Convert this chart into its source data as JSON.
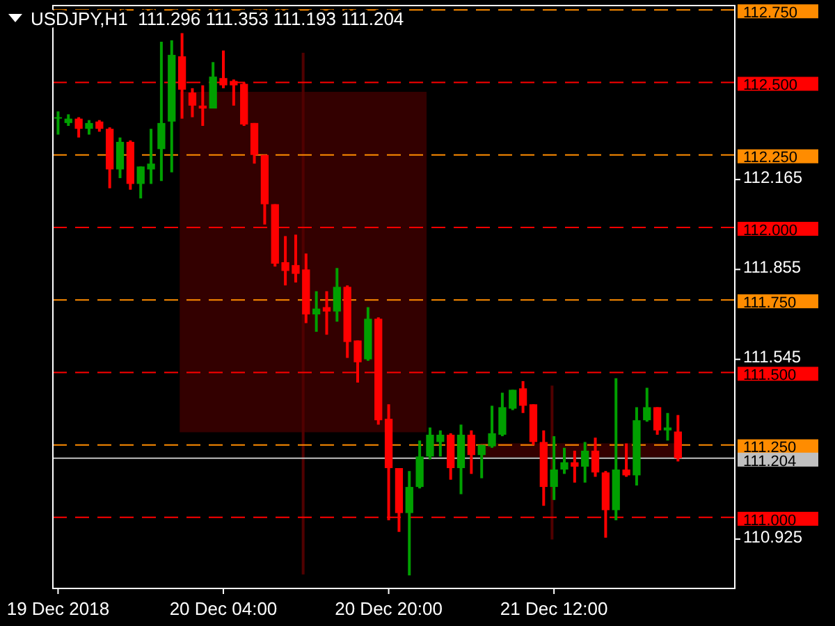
{
  "chart_data": {
    "type": "candlestick",
    "title": "USDJPY,H1  111.296 111.353 111.193 111.204",
    "categories": [
      "19 Dec 2018",
      null,
      null,
      null,
      null,
      null,
      null,
      null,
      null,
      null,
      null,
      null,
      null,
      null,
      null,
      null,
      "20 Dec 04:00",
      null,
      null,
      null,
      null,
      null,
      null,
      null,
      null,
      null,
      null,
      null,
      null,
      null,
      null,
      null,
      "20 Dec 20:00",
      null,
      null,
      null,
      null,
      null,
      null,
      null,
      null,
      null,
      null,
      null,
      null,
      null,
      null,
      null,
      "21 Dec 12:00",
      null,
      null,
      null,
      null,
      null,
      null,
      null,
      null,
      null,
      null,
      null,
      null,
      null,
      null,
      null,
      null,
      null
    ],
    "ylim": [
      110.755,
      112.765
    ],
    "yticks": [
      112.165,
      111.855,
      111.545,
      110.925
    ],
    "series": [
      {
        "color": "#00a000",
        "ohlc": [
          [
            112.38,
            112.4,
            112.32,
            112.38
          ],
          [
            112.36,
            112.39,
            112.35,
            112.375
          ],
          null,
          [
            112.34,
            112.37,
            112.32,
            112.36
          ],
          null,
          null,
          [
            112.2,
            112.31,
            112.17,
            112.295
          ],
          null,
          [
            112.15,
            112.21,
            112.1,
            112.21
          ],
          [
            112.2,
            112.34,
            112.15,
            112.22
          ],
          [
            112.27,
            112.64,
            112.16,
            112.36
          ],
          [
            112.365,
            112.645,
            112.19,
            112.595
          ],
          null,
          null,
          null,
          [
            112.41,
            112.57,
            112.41,
            112.52
          ],
          null,
          null,
          null,
          null,
          null,
          null,
          null,
          null,
          null,
          [
            111.7,
            111.78,
            111.64,
            111.72
          ],
          null,
          [
            111.71,
            111.86,
            111.675,
            111.795
          ],
          null,
          null,
          [
            111.545,
            111.725,
            111.54,
            111.685
          ],
          null,
          null,
          null,
          [
            111.015,
            111.16,
            110.8,
            111.105
          ],
          [
            111.105,
            111.265,
            111.1,
            111.21
          ],
          [
            111.21,
            111.31,
            111.2,
            111.285
          ],
          [
            111.26,
            111.3,
            111.21,
            111.285
          ],
          null,
          [
            111.17,
            111.32,
            111.08,
            111.285
          ],
          null,
          [
            111.215,
            111.25,
            111.135,
            111.25
          ],
          [
            111.245,
            111.385,
            111.24,
            111.29
          ],
          [
            111.285,
            111.43,
            111.28,
            111.38
          ],
          [
            111.375,
            111.44,
            111.37,
            111.44
          ],
          null,
          null,
          null,
          [
            111.105,
            111.28,
            111.06,
            111.165
          ],
          [
            111.165,
            111.24,
            111.15,
            111.19
          ],
          null,
          [
            111.175,
            111.26,
            111.12,
            111.23
          ],
          null,
          null,
          [
            111.025,
            111.48,
            110.99,
            111.165
          ],
          null,
          [
            111.145,
            111.38,
            111.11,
            111.335
          ],
          [
            111.335,
            111.447,
            111.33,
            111.38
          ],
          null,
          [
            111.3,
            111.36,
            111.265,
            111.31
          ],
          null,
          null,
          null,
          null,
          null,
          null
        ]
      },
      {
        "color": "#ff0000",
        "ohlc": [
          null,
          null,
          [
            112.375,
            112.38,
            112.31,
            112.34
          ],
          null,
          [
            112.365,
            112.37,
            112.33,
            112.34
          ],
          [
            112.34,
            112.345,
            112.135,
            112.2
          ],
          null,
          [
            112.295,
            112.3,
            112.13,
            112.15
          ],
          null,
          null,
          null,
          null,
          [
            112.59,
            112.67,
            112.375,
            112.475
          ],
          [
            112.465,
            112.48,
            112.38,
            112.42
          ],
          [
            112.42,
            112.49,
            112.35,
            112.41
          ],
          null,
          [
            112.515,
            112.61,
            112.48,
            112.49
          ],
          [
            112.505,
            112.51,
            112.42,
            112.49
          ],
          [
            112.495,
            112.5,
            112.35,
            112.355
          ],
          [
            112.36,
            112.36,
            112.22,
            112.25
          ],
          [
            112.25,
            112.25,
            112.01,
            112.08
          ],
          [
            112.08,
            112.08,
            111.865,
            111.875
          ],
          [
            111.88,
            111.97,
            111.8,
            111.85
          ],
          [
            111.87,
            111.975,
            111.81,
            111.84
          ],
          [
            111.855,
            111.91,
            111.67,
            111.7
          ],
          null,
          [
            111.725,
            111.78,
            111.63,
            111.71
          ],
          null,
          [
            111.795,
            111.8,
            111.55,
            111.605
          ],
          [
            111.61,
            111.61,
            111.465,
            111.535
          ],
          null,
          [
            111.685,
            111.69,
            111.32,
            111.335
          ],
          [
            111.34,
            111.39,
            110.99,
            111.17
          ],
          [
            111.17,
            111.17,
            110.95,
            111.015
          ],
          null,
          null,
          null,
          null,
          [
            111.285,
            111.29,
            111.13,
            111.17
          ],
          null,
          [
            111.285,
            111.3,
            111.15,
            111.215
          ],
          null,
          null,
          null,
          null,
          [
            111.445,
            111.47,
            111.36,
            111.385
          ],
          [
            111.39,
            111.39,
            111.25,
            111.26
          ],
          [
            111.26,
            111.3,
            111.04,
            111.105
          ],
          null,
          null,
          [
            111.19,
            111.23,
            111.12,
            111.175
          ],
          null,
          [
            111.23,
            111.275,
            111.14,
            111.155
          ],
          [
            111.155,
            111.16,
            110.93,
            111.025
          ],
          null,
          [
            111.165,
            111.255,
            111.14,
            111.145
          ],
          null,
          null,
          [
            111.38,
            111.38,
            111.285,
            111.3
          ],
          null,
          [
            111.296,
            111.353,
            111.193,
            111.204
          ],
          null,
          null,
          null,
          null,
          null
        ]
      }
    ],
    "ref_lines": [
      {
        "axis": "y",
        "value": 112.75,
        "label": "112.750",
        "color": "#ff8c00",
        "line_style": "dashed"
      },
      {
        "axis": "y",
        "value": 112.5,
        "label": "112.500",
        "color": "#ff0000",
        "line_style": "dashed"
      },
      {
        "axis": "y",
        "value": 112.25,
        "label": "112.250",
        "color": "#ff8c00",
        "line_style": "dashed"
      },
      {
        "axis": "y",
        "value": 112.0,
        "label": "112.000",
        "color": "#ff0000",
        "line_style": "dashed"
      },
      {
        "axis": "y",
        "value": 111.75,
        "label": "111.750",
        "color": "#ff8c00",
        "line_style": "dashed"
      },
      {
        "axis": "y",
        "value": 111.5,
        "label": "111.500",
        "color": "#ff0000",
        "line_style": "dashed"
      },
      {
        "axis": "y",
        "value": 111.25,
        "label": "111.250",
        "color": "#ff8c00",
        "line_style": "dashed"
      },
      {
        "axis": "y",
        "value": 111.0,
        "label": "111.000",
        "color": "#ff0000",
        "line_style": "dashed"
      },
      {
        "axis": "y",
        "value": 111.204,
        "label": "111.204",
        "color": "#c0c0c0",
        "line_style": "solid"
      }
    ]
  }
}
